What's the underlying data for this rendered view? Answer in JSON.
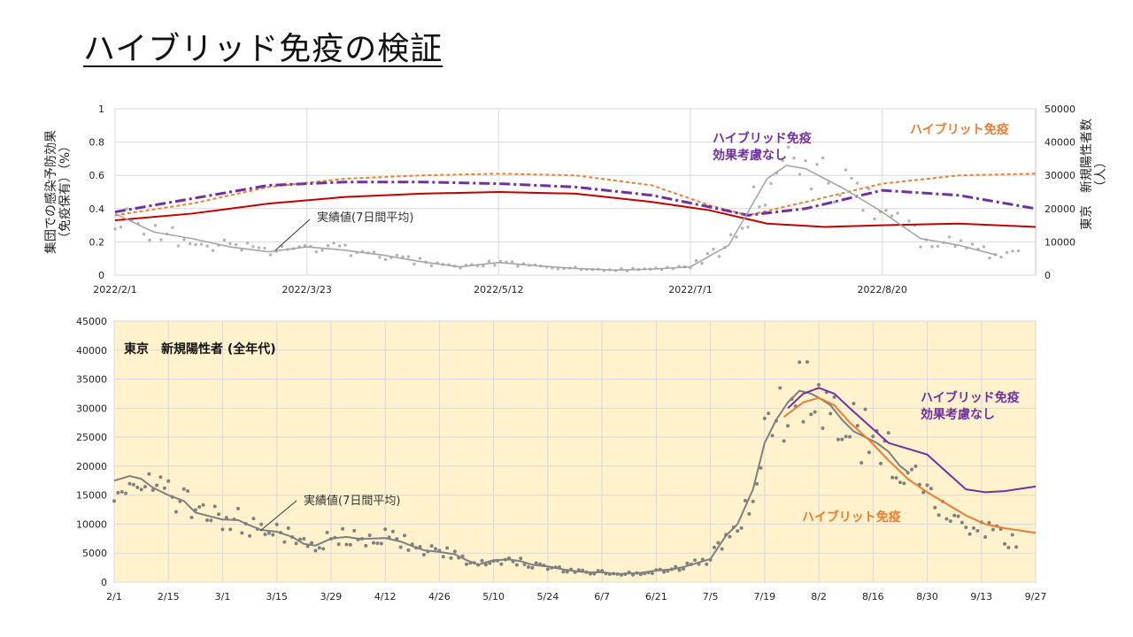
{
  "page": {
    "title": "ハイブリッド免疫の検証"
  },
  "chart_data": [
    {
      "type": "line",
      "y_left_label": "集団での感染予防効果\n（免疫保有）（%）",
      "y_right_label": "東京　新規陽性者数\n（人）",
      "x_tick_labels": [
        "2022/2/1",
        "2022/3/23",
        "2022/5/12",
        "2022/7/1",
        "2022/8/20"
      ],
      "x_tick_days": [
        0,
        50,
        100,
        150,
        200
      ],
      "x_range_days": [
        0,
        240
      ],
      "x_start_date": "2022/2/1",
      "y_left_ticks": [
        "0",
        "0.2",
        "0.4",
        "0.6",
        "0.8",
        "1"
      ],
      "y_left_lim": [
        0,
        1
      ],
      "y_right_ticks": [
        "0",
        "10000",
        "20000",
        "30000",
        "40000",
        "50000"
      ],
      "y_right_lim": [
        0,
        50000
      ],
      "grid": true,
      "annotations": {
        "purple": [
          "ハイブリッド免疫",
          "効果考慮なし"
        ],
        "orange": "ハイブリット免疫",
        "actual": "実績値(7日間平均)"
      },
      "series": [
        {
          "name": "",
          "color": "#c00000",
          "style": "solid",
          "x": [
            0,
            20,
            40,
            60,
            80,
            100,
            120,
            140,
            155,
            170,
            185,
            200,
            220,
            240
          ],
          "y": [
            0.33,
            0.37,
            0.43,
            0.47,
            0.49,
            0.5,
            0.49,
            0.44,
            0.39,
            0.31,
            0.29,
            0.3,
            0.31,
            0.29
          ]
        },
        {
          "name": "",
          "color": "#ed7d31",
          "style": "dashed",
          "x": [
            0,
            20,
            40,
            60,
            80,
            100,
            120,
            140,
            155,
            165,
            180,
            200,
            220,
            240
          ],
          "y": [
            0.36,
            0.43,
            0.53,
            0.58,
            0.6,
            0.61,
            0.6,
            0.54,
            0.42,
            0.36,
            0.44,
            0.55,
            0.6,
            0.61
          ]
        },
        {
          "name": "",
          "color": "#7030a0",
          "style": "dashdot",
          "x": [
            0,
            20,
            40,
            60,
            80,
            100,
            120,
            140,
            155,
            165,
            180,
            200,
            220,
            240
          ],
          "y": [
            0.38,
            0.46,
            0.54,
            0.56,
            0.56,
            0.55,
            0.53,
            0.48,
            0.41,
            0.36,
            0.4,
            0.51,
            0.48,
            0.4
          ]
        },
        {
          "name": "",
          "color": "#a6a6a6",
          "style": "solid",
          "x": [
            0,
            10,
            20,
            30,
            40,
            50,
            60,
            70,
            80,
            90,
            100,
            110,
            120,
            130,
            140,
            150,
            160,
            170,
            175,
            180,
            190,
            200,
            210,
            220,
            230
          ],
          "y": [
            18500,
            13000,
            11000,
            8500,
            7000,
            8500,
            7500,
            6000,
            4000,
            2500,
            3800,
            2800,
            2000,
            1500,
            1800,
            2500,
            9000,
            29000,
            33000,
            32000,
            26000,
            19000,
            11000,
            9000,
            6000
          ]
        }
      ]
    },
    {
      "type": "line",
      "title": "東京　新規陽性者 (全年代)",
      "x_tick_labels": [
        "2/1",
        "2/15",
        "3/1",
        "3/15",
        "3/29",
        "4/12",
        "4/26",
        "5/10",
        "5/24",
        "6/7",
        "6/21",
        "7/5",
        "7/19",
        "8/2",
        "8/16",
        "8/30",
        "9/13",
        "9/27"
      ],
      "x_tick_days": [
        0,
        14,
        28,
        42,
        56,
        70,
        84,
        98,
        112,
        126,
        140,
        154,
        168,
        182,
        196,
        210,
        224,
        238
      ],
      "x_range_days": [
        0,
        238
      ],
      "y_ticks": [
        "0",
        "5000",
        "10000",
        "15000",
        "20000",
        "25000",
        "30000",
        "35000",
        "40000",
        "45000"
      ],
      "ylim": [
        0,
        45000
      ],
      "grid": true,
      "annotations": {
        "purple": [
          "ハイブリッド免疫",
          "効果考慮なし"
        ],
        "orange": "ハイブリット免疫",
        "actual": "実績値(7日間平均)"
      },
      "series": [
        {
          "name": "",
          "color": "#7f7f7f",
          "style": "solid",
          "x": [
            0,
            4,
            7,
            10,
            14,
            18,
            21,
            25,
            28,
            32,
            35,
            38,
            42,
            46,
            49,
            52,
            56,
            60,
            63,
            66,
            70,
            74,
            77,
            80,
            84,
            88,
            91,
            94,
            98,
            102,
            105,
            108,
            112,
            116,
            119,
            122,
            126,
            130,
            133,
            136,
            140,
            144,
            147,
            150,
            154,
            158,
            161,
            165,
            168,
            171,
            174,
            177,
            180,
            182,
            185,
            188,
            191,
            194,
            197,
            200,
            203,
            205
          ],
          "y": [
            17500,
            18300,
            17800,
            16300,
            15000,
            14000,
            12000,
            11300,
            10800,
            10700,
            9800,
            9000,
            8700,
            7800,
            6600,
            6300,
            7500,
            7800,
            7500,
            7500,
            7600,
            7000,
            6200,
            5500,
            5200,
            4800,
            3800,
            3000,
            3800,
            3900,
            3600,
            3000,
            2700,
            2200,
            1900,
            1700,
            1700,
            1400,
            1500,
            1600,
            2000,
            2200,
            2600,
            3200,
            4000,
            8000,
            10000,
            16000,
            24000,
            28000,
            31000,
            33000,
            32500,
            31800,
            30500,
            28000,
            26000,
            25000,
            24000,
            22500,
            20000,
            19000
          ]
        },
        {
          "name": "",
          "color": "#ed7d31",
          "style": "solid",
          "x": [
            173,
            178,
            182,
            186,
            190,
            195,
            200,
            205,
            210,
            215,
            220,
            225,
            230,
            238
          ],
          "y": [
            28500,
            31000,
            31800,
            30500,
            27500,
            24500,
            21000,
            17800,
            15500,
            13500,
            11500,
            10000,
            9300,
            8500
          ]
        },
        {
          "name": "",
          "color": "#7030a0",
          "style": "solid",
          "x": [
            174,
            178,
            182,
            186,
            190,
            195,
            200,
            205,
            210,
            215,
            220,
            225,
            230,
            238
          ],
          "y": [
            30000,
            32500,
            33500,
            32500,
            30000,
            27000,
            24000,
            23000,
            22000,
            19000,
            16000,
            15500,
            15700,
            16500
          ]
        }
      ]
    }
  ]
}
